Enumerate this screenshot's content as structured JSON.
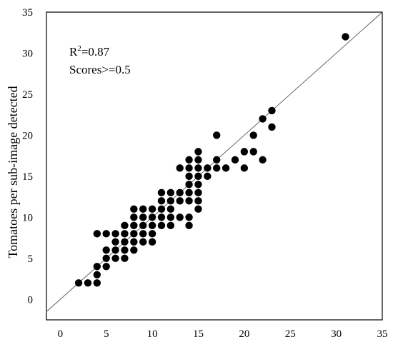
{
  "chart_data": {
    "type": "scatter",
    "title": "",
    "xlabel": "",
    "ylabel": "Tomatoes per sub-image detected",
    "xlim": [
      -1.5,
      35
    ],
    "ylim": [
      -2.5,
      35
    ],
    "xticks": [
      0,
      5,
      10,
      15,
      20,
      25,
      30,
      35
    ],
    "yticks": [
      0,
      5,
      10,
      15,
      20,
      25,
      30,
      35
    ],
    "grid": false,
    "reference_line": "y = x",
    "annotations": {
      "r2_prefix": "R",
      "r2_sup": "2",
      "r2_value": "=0.87",
      "scores": "Scores>=0.5"
    },
    "series": [
      {
        "marker": "filled-circle",
        "color": "#000000",
        "points": [
          [
            2,
            2
          ],
          [
            3,
            2
          ],
          [
            4,
            2
          ],
          [
            4,
            3
          ],
          [
            4,
            4
          ],
          [
            5,
            4
          ],
          [
            5,
            5
          ],
          [
            5,
            6
          ],
          [
            4,
            8
          ],
          [
            5,
            8
          ],
          [
            6,
            5
          ],
          [
            6,
            6
          ],
          [
            6,
            7
          ],
          [
            6,
            8
          ],
          [
            7,
            5
          ],
          [
            7,
            6
          ],
          [
            7,
            7
          ],
          [
            7,
            8
          ],
          [
            7,
            9
          ],
          [
            8,
            6
          ],
          [
            8,
            7
          ],
          [
            8,
            8
          ],
          [
            8,
            9
          ],
          [
            8,
            10
          ],
          [
            8,
            11
          ],
          [
            9,
            7
          ],
          [
            9,
            8
          ],
          [
            9,
            9
          ],
          [
            9,
            10
          ],
          [
            9,
            11
          ],
          [
            10,
            7
          ],
          [
            10,
            8
          ],
          [
            10,
            9
          ],
          [
            10,
            10
          ],
          [
            10,
            11
          ],
          [
            11,
            9
          ],
          [
            11,
            10
          ],
          [
            11,
            11
          ],
          [
            11,
            12
          ],
          [
            11,
            13
          ],
          [
            12,
            9
          ],
          [
            12,
            10
          ],
          [
            12,
            11
          ],
          [
            12,
            12
          ],
          [
            12,
            13
          ],
          [
            13,
            10
          ],
          [
            13,
            12
          ],
          [
            13,
            13
          ],
          [
            13,
            16
          ],
          [
            14,
            9
          ],
          [
            14,
            10
          ],
          [
            14,
            12
          ],
          [
            14,
            13
          ],
          [
            14,
            14
          ],
          [
            14,
            15
          ],
          [
            14,
            16
          ],
          [
            14,
            17
          ],
          [
            15,
            11
          ],
          [
            15,
            12
          ],
          [
            15,
            13
          ],
          [
            15,
            14
          ],
          [
            15,
            15
          ],
          [
            15,
            16
          ],
          [
            15,
            17
          ],
          [
            15,
            18
          ],
          [
            16,
            15
          ],
          [
            16,
            16
          ],
          [
            17,
            16
          ],
          [
            17,
            17
          ],
          [
            17,
            20
          ],
          [
            18,
            16
          ],
          [
            19,
            17
          ],
          [
            20,
            16
          ],
          [
            20,
            18
          ],
          [
            21,
            18
          ],
          [
            21,
            20
          ],
          [
            22,
            17
          ],
          [
            22,
            22
          ],
          [
            23,
            21
          ],
          [
            23,
            23
          ],
          [
            31,
            32
          ]
        ]
      }
    ]
  }
}
